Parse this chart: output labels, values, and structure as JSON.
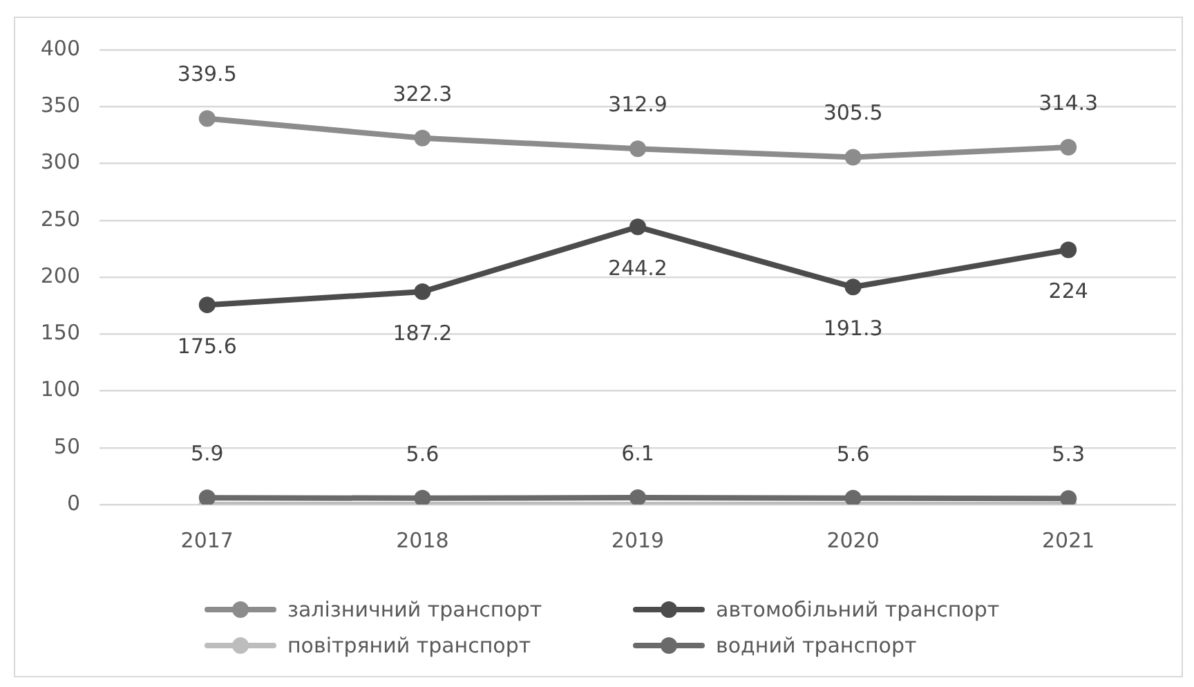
{
  "chart_data": {
    "type": "line",
    "categories": [
      "2017",
      "2018",
      "2019",
      "2020",
      "2021"
    ],
    "series": [
      {
        "name": "залізничний транспорт",
        "color": "#8c8c8c",
        "values": [
          339.5,
          322.3,
          312.9,
          305.5,
          314.3
        ],
        "value_labels": [
          "339.5",
          "322.3",
          "312.9",
          "305.5",
          "314.3"
        ]
      },
      {
        "name": "автомобільний транспорт",
        "color": "#4c4c4c",
        "values": [
          175.6,
          187.2,
          244.2,
          191.3,
          224
        ],
        "value_labels": [
          "175.6",
          "187.2",
          "244.2",
          "191.3",
          "224"
        ]
      },
      {
        "name": "повітряний транспорт",
        "color": "#bdbdbd",
        "values": [
          0,
          0,
          0,
          0,
          0
        ]
      },
      {
        "name": "водний транспорт",
        "color": "#6a6a6a",
        "values": [
          5.9,
          5.6,
          6.1,
          5.6,
          5.3
        ],
        "value_labels": [
          "5.9",
          "5.6",
          "6.1",
          "5.6",
          "5.3"
        ]
      }
    ],
    "ylim": [
      0,
      400
    ],
    "yticks": [
      0,
      50,
      100,
      150,
      200,
      250,
      300,
      350,
      400
    ],
    "grid": "y",
    "legend": "bottom",
    "marker": "circle",
    "line_style": "solid"
  }
}
